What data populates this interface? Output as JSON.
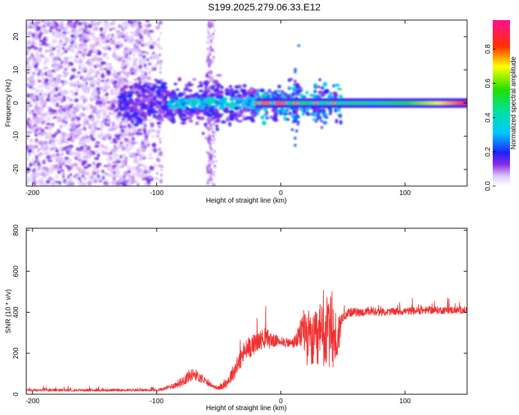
{
  "figure_title": "S199.2025.279.06.33.E12",
  "colors": {
    "signal": "#f03030",
    "spectrogram_dots": "#8a2be2",
    "background": "#ffffff"
  },
  "chart_data": [
    {
      "type": "heatmap",
      "title": "S199.2025.279.06.33.E12",
      "xlabel": "Height of straight line (km)",
      "ylabel": "Frequency (Hz)",
      "xlim": [
        -205,
        150
      ],
      "ylim": [
        -25,
        25
      ],
      "xticks": [
        -200,
        -100,
        0,
        100
      ],
      "yticks": [
        -20,
        -10,
        0,
        10,
        20
      ],
      "xtick_labels": [
        "-200",
        "-100",
        "0",
        "100"
      ],
      "ytick_labels": [
        "-20",
        "-10",
        "0",
        "10",
        "20"
      ],
      "colorbar": {
        "label": "Normalized spectral amplitude",
        "range": [
          0.0,
          0.97
        ],
        "ticks": [
          0.0,
          0.2,
          0.4,
          0.6,
          0.8
        ],
        "tick_labels": [
          "0.0",
          "0.2",
          "0.4",
          "0.6",
          "0.8"
        ],
        "colormap": "rainbow (white-violet-blue-cyan-green-yellow-red-magenta)"
      },
      "features": [
        {
          "name": "noise",
          "x_range": [
            -205,
            -95
          ],
          "freq_range": [
            -25,
            25
          ],
          "amplitude": 0.05
        },
        {
          "name": "mid-band",
          "x_range": [
            -130,
            -20
          ],
          "freq_center": 0,
          "freq_halfwidth": 5,
          "amplitude": 0.2
        },
        {
          "name": "narrow line",
          "x_range": [
            -20,
            150
          ],
          "freq_center": 0,
          "freq_halfwidth": 1,
          "amplitude": 0.8
        }
      ]
    },
    {
      "type": "line",
      "xlabel": "Height of straight line (km)",
      "ylabel": "SNR (10 * v/v)",
      "xlim": [
        -205,
        150
      ],
      "ylim": [
        0,
        810
      ],
      "xticks": [
        -200,
        -100,
        0,
        100
      ],
      "yticks": [
        0,
        200,
        400,
        600,
        800
      ],
      "xtick_labels": [
        "-200",
        "-100",
        "0",
        "100"
      ],
      "ytick_labels": [
        "0",
        "200",
        "400",
        "600",
        "800"
      ],
      "series": [
        {
          "name": "SNR",
          "x": [
            -205,
            -150,
            -100,
            -95,
            -85,
            -80,
            -75,
            -70,
            -65,
            -60,
            -55,
            -50,
            -45,
            -40,
            -35,
            -30,
            -25,
            -20,
            -15,
            -10,
            -5,
            0,
            5,
            10,
            15,
            18,
            20,
            25,
            30,
            35,
            40,
            45,
            50,
            55,
            60,
            80,
            100,
            120,
            150
          ],
          "values": [
            20,
            20,
            20,
            25,
            45,
            60,
            85,
            100,
            80,
            60,
            40,
            30,
            45,
            90,
            140,
            200,
            230,
            250,
            270,
            270,
            260,
            260,
            250,
            250,
            280,
            330,
            300,
            250,
            250,
            300,
            300,
            260,
            380,
            400,
            400,
            400,
            405,
            410,
            410
          ],
          "spread": [
            10,
            10,
            10,
            12,
            25,
            40,
            50,
            50,
            40,
            25,
            15,
            15,
            30,
            60,
            80,
            90,
            90,
            80,
            80,
            80,
            50,
            40,
            40,
            40,
            100,
            180,
            260,
            200,
            300,
            300,
            300,
            240,
            40,
            35,
            35,
            30,
            30,
            30,
            30
          ]
        }
      ]
    }
  ]
}
